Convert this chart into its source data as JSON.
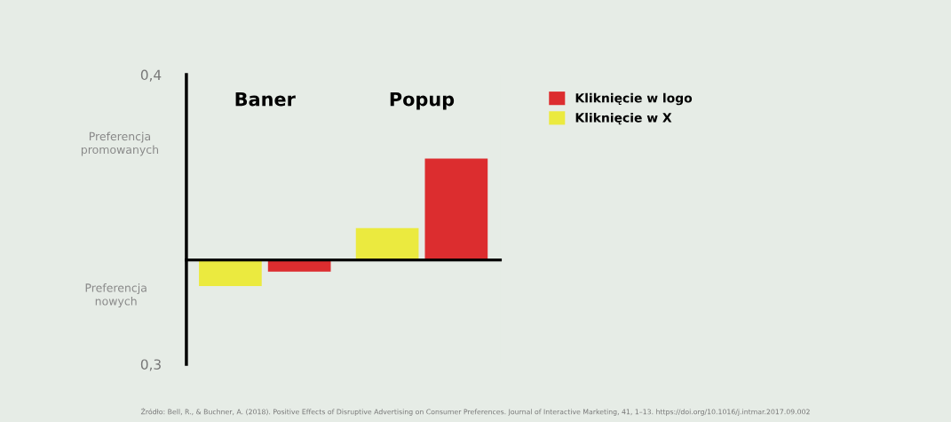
{
  "chart_data": {
    "type": "bar",
    "categories": [
      "Baner",
      "Popup"
    ],
    "series": [
      {
        "name": "Kliknięcie w X",
        "color": "#ebea3f",
        "base": [
          0.336,
          0.336
        ],
        "values": [
          -0.009,
          0.011
        ]
      },
      {
        "name": "Kliknięcie w logo",
        "color": "#dc2d2f",
        "base": [
          0.336,
          0.336
        ],
        "values": [
          -0.004,
          0.035
        ]
      }
    ],
    "ylim": [
      0.3,
      0.4
    ],
    "yticks": [
      {
        "value": 0.3,
        "label": "0,3"
      },
      {
        "value": 0.4,
        "label": "0,4"
      }
    ],
    "ref_lines": [
      {
        "axis": "y",
        "value": 0.336,
        "color": "#000000"
      }
    ],
    "annotations": [
      "Preferencja\npromowanych",
      "Preferencja\nnowych",
      "Źródło: Bell, R., & Buchner, A. (2018). Positive Effects of Disruptive Advertising on Consumer Preferences. Journal of Interactive Marketing, 41, 1–13. https://doi.org/10.1016/j.intmar.2017.09.002"
    ],
    "grid": false,
    "legend": "top right"
  }
}
